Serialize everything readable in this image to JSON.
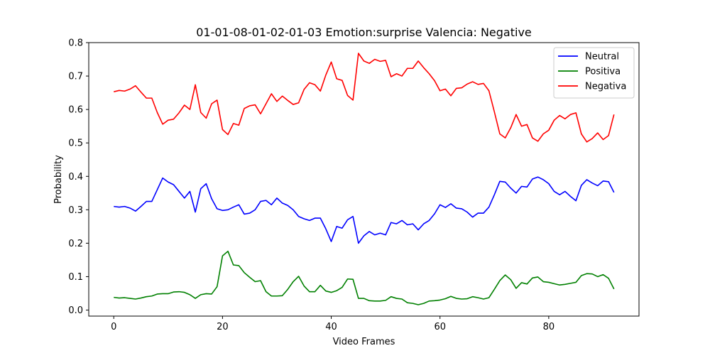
{
  "chart_data": {
    "type": "line",
    "title": "01-01-08-01-02-01-03 Emotion:surprise Valencia: Negative",
    "xlabel": "Video Frames",
    "ylabel": "Probability",
    "xlim": [
      -4.6,
      96.6
    ],
    "ylim": [
      -0.018,
      0.8
    ],
    "xticks": [
      0,
      20,
      40,
      60,
      80
    ],
    "yticks": [
      0.0,
      0.1,
      0.2,
      0.3,
      0.4,
      0.5,
      0.6,
      0.7,
      0.8
    ],
    "xtick_labels": [
      "0",
      "20",
      "40",
      "60",
      "80"
    ],
    "ytick_labels": [
      "0.0",
      "0.1",
      "0.2",
      "0.3",
      "0.4",
      "0.5",
      "0.6",
      "0.7",
      "0.8"
    ],
    "grid": false,
    "legend_position": "top-right",
    "series": [
      {
        "name": "Neutral",
        "color": "#0000ff",
        "values": [
          0.31,
          0.308,
          0.31,
          0.305,
          0.296,
          0.31,
          0.325,
          0.325,
          0.36,
          0.395,
          0.383,
          0.375,
          0.355,
          0.335,
          0.355,
          0.293,
          0.363,
          0.378,
          0.333,
          0.303,
          0.298,
          0.3,
          0.308,
          0.315,
          0.287,
          0.29,
          0.3,
          0.325,
          0.328,
          0.315,
          0.335,
          0.32,
          0.313,
          0.3,
          0.28,
          0.273,
          0.268,
          0.275,
          0.275,
          0.243,
          0.205,
          0.25,
          0.245,
          0.27,
          0.28,
          0.2,
          0.222,
          0.235,
          0.225,
          0.23,
          0.225,
          0.262,
          0.258,
          0.268,
          0.255,
          0.258,
          0.24,
          0.258,
          0.268,
          0.288,
          0.315,
          0.307,
          0.318,
          0.305,
          0.303,
          0.293,
          0.278,
          0.29,
          0.29,
          0.308,
          0.345,
          0.385,
          0.383,
          0.365,
          0.35,
          0.37,
          0.368,
          0.392,
          0.398,
          0.39,
          0.378,
          0.355,
          0.345,
          0.355,
          0.34,
          0.327,
          0.373,
          0.39,
          0.38,
          0.372,
          0.386,
          0.384,
          0.352
        ]
      },
      {
        "name": "Positiva",
        "color": "#008000",
        "values": [
          0.038,
          0.036,
          0.037,
          0.035,
          0.033,
          0.036,
          0.04,
          0.042,
          0.048,
          0.049,
          0.049,
          0.054,
          0.055,
          0.053,
          0.046,
          0.035,
          0.046,
          0.049,
          0.048,
          0.07,
          0.162,
          0.176,
          0.135,
          0.133,
          0.112,
          0.098,
          0.085,
          0.088,
          0.055,
          0.042,
          0.042,
          0.043,
          0.062,
          0.085,
          0.101,
          0.072,
          0.055,
          0.055,
          0.074,
          0.057,
          0.053,
          0.058,
          0.068,
          0.093,
          0.092,
          0.035,
          0.035,
          0.028,
          0.027,
          0.027,
          0.029,
          0.04,
          0.035,
          0.033,
          0.022,
          0.02,
          0.016,
          0.02,
          0.027,
          0.028,
          0.03,
          0.034,
          0.041,
          0.035,
          0.033,
          0.034,
          0.04,
          0.037,
          0.033,
          0.037,
          0.062,
          0.088,
          0.105,
          0.091,
          0.065,
          0.082,
          0.078,
          0.096,
          0.099,
          0.085,
          0.083,
          0.079,
          0.075,
          0.077,
          0.08,
          0.083,
          0.103,
          0.109,
          0.108,
          0.1,
          0.106,
          0.095,
          0.063
        ]
      },
      {
        "name": "Negativa",
        "color": "#ff0000",
        "values": [
          0.653,
          0.657,
          0.655,
          0.661,
          0.671,
          0.652,
          0.634,
          0.634,
          0.591,
          0.556,
          0.568,
          0.571,
          0.59,
          0.613,
          0.6,
          0.674,
          0.591,
          0.574,
          0.617,
          0.628,
          0.54,
          0.525,
          0.558,
          0.553,
          0.603,
          0.611,
          0.614,
          0.587,
          0.617,
          0.647,
          0.624,
          0.64,
          0.627,
          0.615,
          0.62,
          0.66,
          0.68,
          0.674,
          0.655,
          0.703,
          0.742,
          0.692,
          0.687,
          0.642,
          0.628,
          0.768,
          0.745,
          0.738,
          0.75,
          0.744,
          0.747,
          0.698,
          0.707,
          0.7,
          0.723,
          0.723,
          0.745,
          0.725,
          0.707,
          0.686,
          0.656,
          0.661,
          0.641,
          0.663,
          0.665,
          0.676,
          0.683,
          0.675,
          0.678,
          0.656,
          0.593,
          0.527,
          0.515,
          0.545,
          0.585,
          0.55,
          0.555,
          0.515,
          0.505,
          0.527,
          0.538,
          0.568,
          0.582,
          0.572,
          0.585,
          0.59,
          0.527,
          0.503,
          0.513,
          0.53,
          0.51,
          0.522,
          0.585
        ]
      }
    ]
  }
}
